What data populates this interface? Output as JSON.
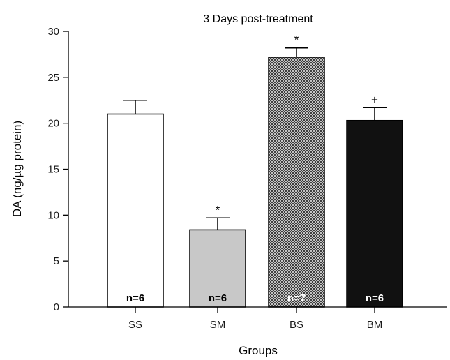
{
  "chart_data": {
    "type": "bar",
    "title": "3 Days post-treatment",
    "xlabel": "Groups",
    "ylabel": "DA (ng/µg protein)",
    "ylim": [
      0,
      30
    ],
    "yticks": [
      0,
      5,
      10,
      15,
      20,
      25,
      30
    ],
    "categories": [
      "SS",
      "SM",
      "BS",
      "BM"
    ],
    "values": [
      21.0,
      8.4,
      27.2,
      20.3
    ],
    "errors": [
      1.5,
      1.3,
      1.0,
      1.4
    ],
    "annotations": [
      "",
      "*",
      "*",
      "+"
    ],
    "n_labels": [
      "n=6",
      "n=6",
      "n=7",
      "n=6"
    ],
    "colors": [
      "#ffffff",
      "#c8c8c8",
      "crosshatch",
      "#111111"
    ],
    "n_label_colors": [
      "#000000",
      "#000000",
      "#ffffff",
      "#ffffff"
    ],
    "grid": false,
    "legend": "none"
  }
}
